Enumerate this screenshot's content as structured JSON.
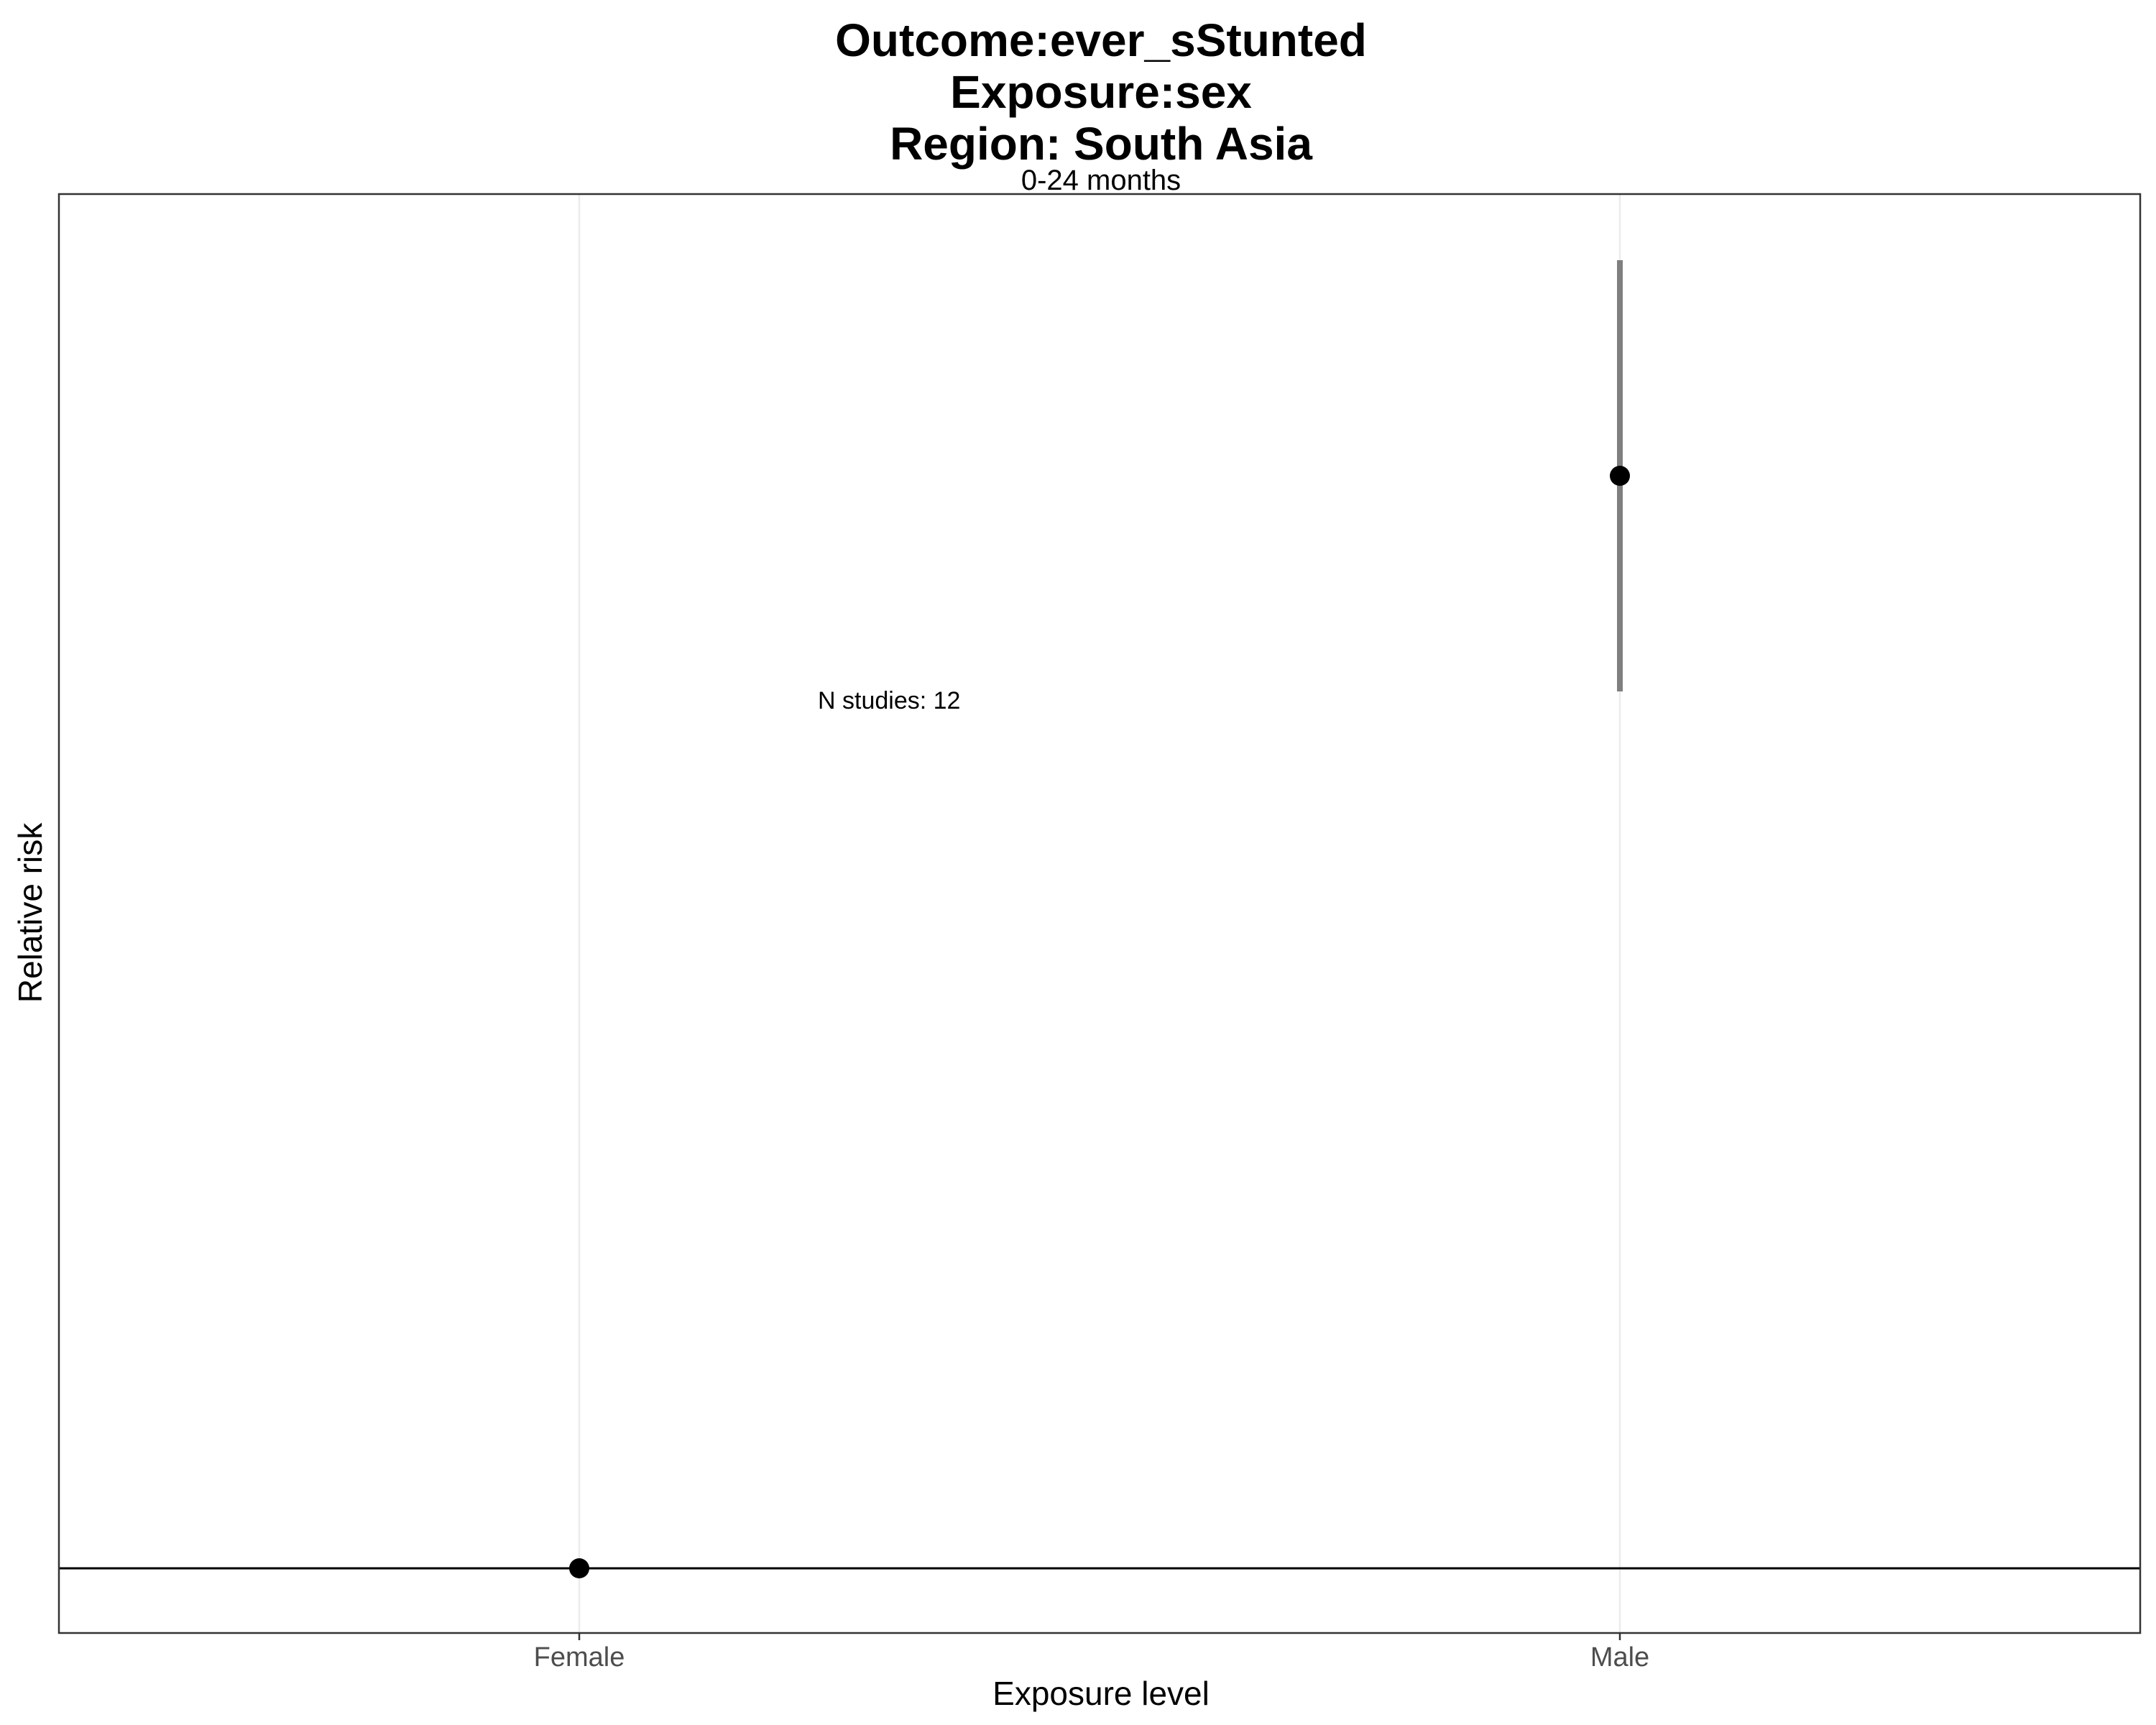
{
  "chart_data": {
    "type": "scatter",
    "title": [
      "Outcome:ever_sStunted",
      "Exposure:sex",
      "Region: South Asia"
    ],
    "subtitle": "0-24 months",
    "xlabel": "Exposure level",
    "ylabel": "Relative risk",
    "categories": [
      "Female",
      "Male"
    ],
    "points": [
      {
        "category": "Female",
        "estimate": 1.0,
        "ci_lower": null,
        "ci_upper": null
      },
      {
        "category": "Male",
        "estimate": 1.76,
        "ci_lower": 1.61,
        "ci_upper": 1.91
      }
    ],
    "reference_line": 1.0,
    "ylim": [
      0.955,
      1.956
    ],
    "y_ticks_shown": false,
    "annotation": "N studies: 12",
    "grid": "vertical major only",
    "legend": "none",
    "colors": {
      "point": "#000000",
      "errorbar": "#7f7f7f",
      "grid": "#ebebeb",
      "panel_border": "#333333",
      "reference_line": "#000000",
      "tick_label": "#4d4d4d"
    }
  }
}
